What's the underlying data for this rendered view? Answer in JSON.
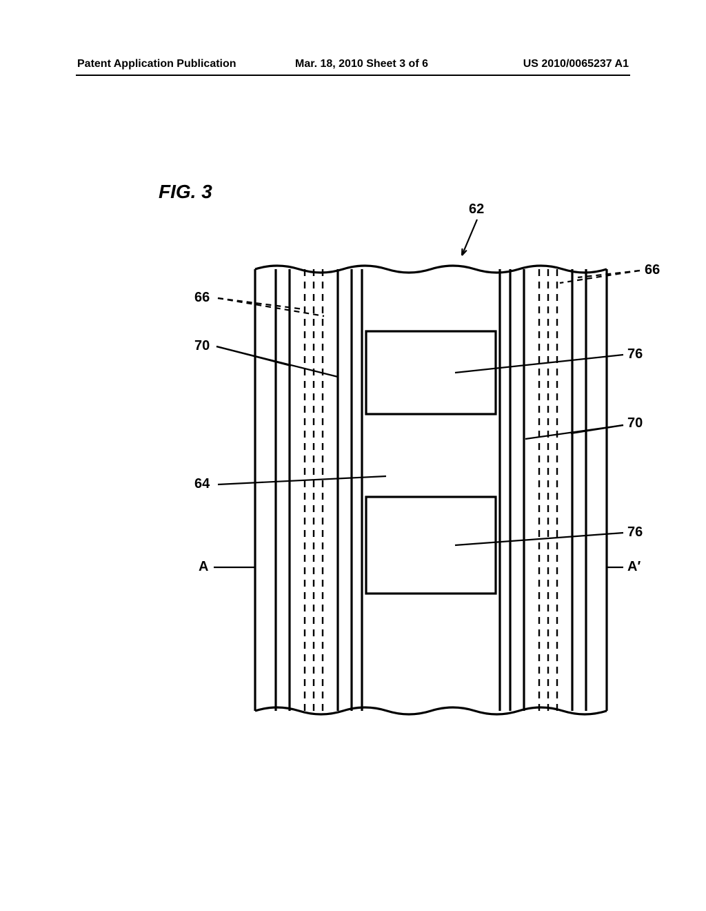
{
  "header": {
    "left": "Patent Application Publication",
    "center": "Mar. 18, 2010  Sheet 3 of 6",
    "right": "US 2010/0065237 A1"
  },
  "figure": {
    "label": "FIG.  3",
    "label_fontsize": 28,
    "refs": {
      "r62": "62",
      "r66L": "66",
      "r66R": "66",
      "r70L": "70",
      "r70R": "70",
      "r64": "64",
      "r76a": "76",
      "r76b": "76",
      "A": "A",
      "Aprime": "A′"
    },
    "colors": {
      "stroke": "#000000",
      "bg": "#ffffff"
    },
    "stroke_main": 3.2,
    "stroke_thin": 2.4,
    "dash": "10,8"
  }
}
